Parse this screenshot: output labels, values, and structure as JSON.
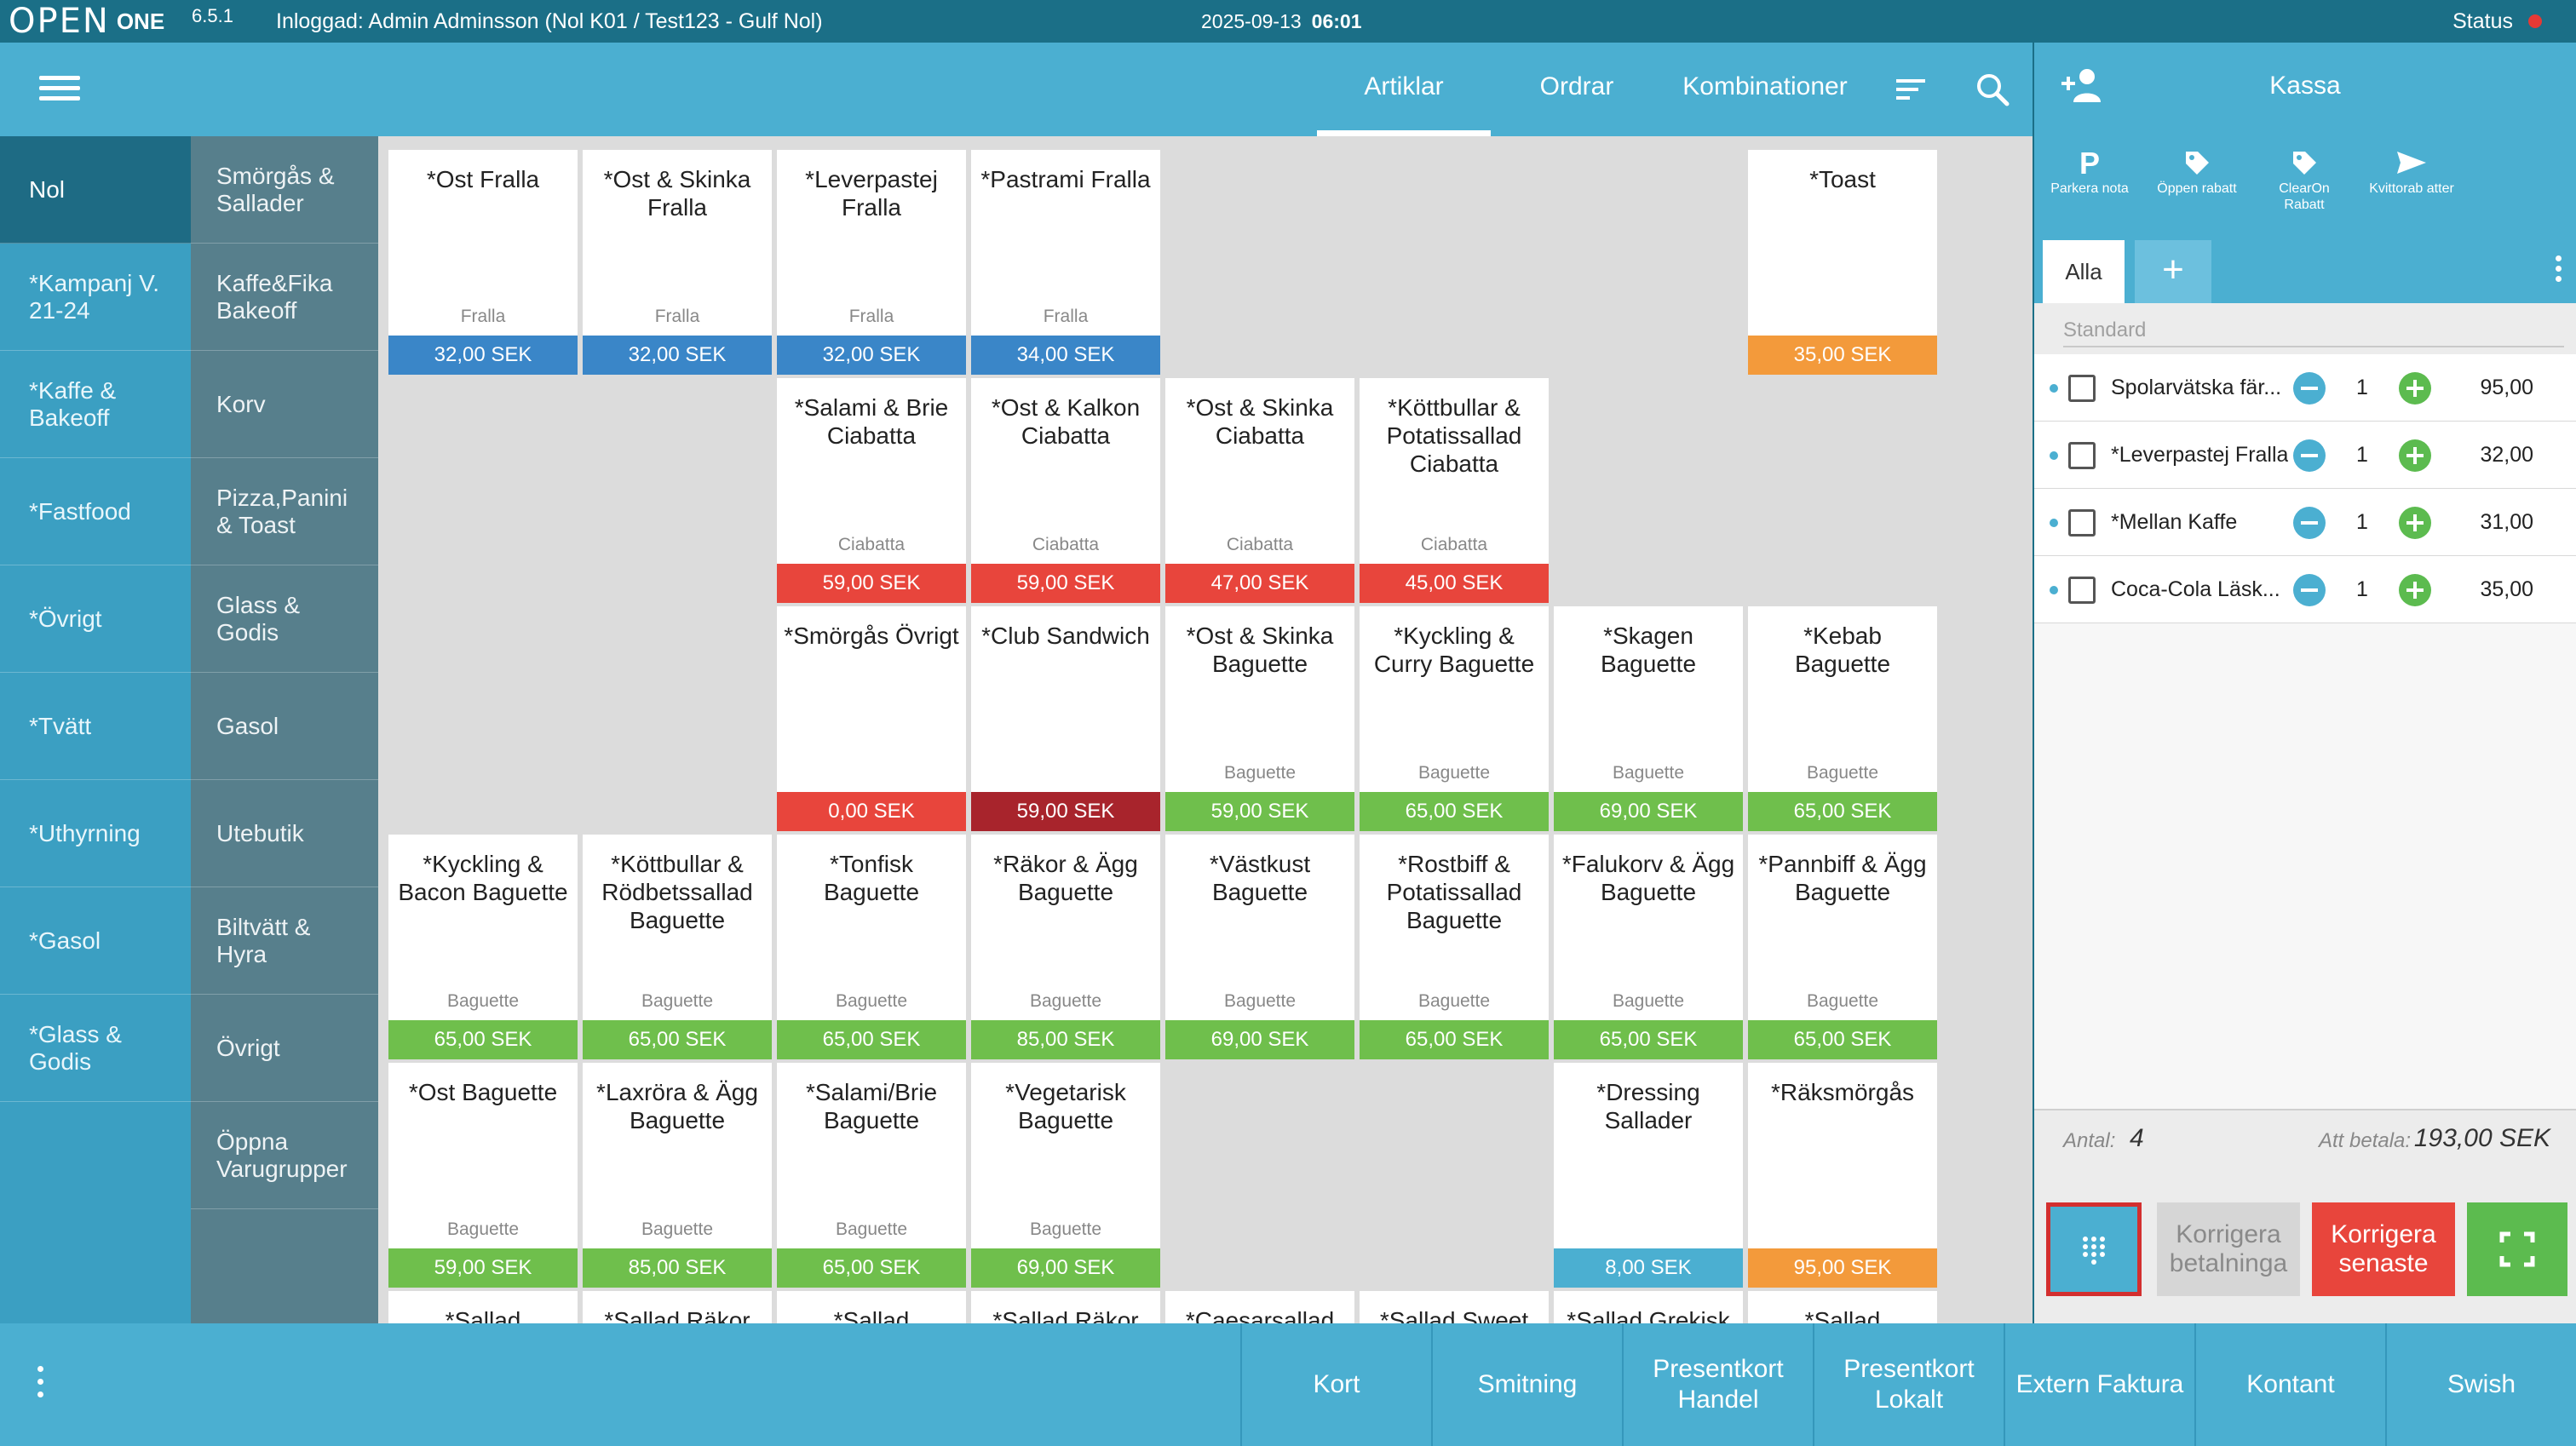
{
  "titlebar": {
    "logo_text": "OPEN",
    "logo_suffix": "ONE",
    "version": "6.5.1",
    "login_text": "Inloggad: Admin Adminsson (Nol K01 / Test123 - Gulf Nol)",
    "date": "2025-09-13",
    "time": "06:01",
    "status_label": "Status",
    "status_color": "#e53935"
  },
  "header": {
    "tabs": [
      {
        "label": "Artiklar",
        "active": true
      },
      {
        "label": "Ordrar",
        "active": false
      },
      {
        "label": "Kombinationer",
        "active": false
      }
    ],
    "icons": [
      "menu-icon",
      "sort-icon",
      "search-icon"
    ]
  },
  "categories_primary": [
    {
      "label": "Nol",
      "active": true
    },
    {
      "label": "*Kampanj V. 21-24"
    },
    {
      "label": "*Kaffe & Bakeoff"
    },
    {
      "label": "*Fastfood"
    },
    {
      "label": "*Övrigt"
    },
    {
      "label": "*Tvätt"
    },
    {
      "label": "*Uthyrning"
    },
    {
      "label": "*Gasol"
    },
    {
      "label": "*Glass & Godis"
    }
  ],
  "categories_secondary": [
    {
      "label": "Smörgås & Sallader"
    },
    {
      "label": "Kaffe&Fika Bakeoff"
    },
    {
      "label": "Korv"
    },
    {
      "label": "Pizza,Panini & Toast"
    },
    {
      "label": "Glass & Godis"
    },
    {
      "label": "Gasol"
    },
    {
      "label": "Utebutik"
    },
    {
      "label": "Biltvätt & Hyra"
    },
    {
      "label": "Övrigt"
    },
    {
      "label": "Öppna Varugrupper"
    }
  ],
  "colors": {
    "blue": "#3a86c8",
    "orange": "#f39a3b",
    "red": "#e8453c",
    "darkred": "#a8242c",
    "green": "#6fbf4c",
    "lightblue": "#4bafd1"
  },
  "products": [
    {
      "name": "*Ost Fralla",
      "sub": "Fralla",
      "price": "32,00 SEK",
      "color": "blue",
      "row": 0,
      "col": 0
    },
    {
      "name": "*Ost & Skinka Fralla",
      "sub": "Fralla",
      "price": "32,00 SEK",
      "color": "blue",
      "row": 0,
      "col": 1
    },
    {
      "name": "*Leverpastej Fralla",
      "sub": "Fralla",
      "price": "32,00 SEK",
      "color": "blue",
      "row": 0,
      "col": 2
    },
    {
      "name": "*Pastrami Fralla",
      "sub": "Fralla",
      "price": "34,00 SEK",
      "color": "blue",
      "row": 0,
      "col": 3
    },
    {
      "name": "*Toast",
      "sub": "",
      "price": "35,00 SEK",
      "color": "orange",
      "row": 0,
      "col": 7
    },
    {
      "name": "*Salami & Brie Ciabatta",
      "sub": "Ciabatta",
      "price": "59,00 SEK",
      "color": "red",
      "row": 1,
      "col": 2
    },
    {
      "name": "*Ost & Kalkon Ciabatta",
      "sub": "Ciabatta",
      "price": "59,00 SEK",
      "color": "red",
      "row": 1,
      "col": 3
    },
    {
      "name": "*Ost & Skinka Ciabatta",
      "sub": "Ciabatta",
      "price": "47,00 SEK",
      "color": "red",
      "row": 1,
      "col": 4
    },
    {
      "name": "*Köttbullar & Potatissallad Ciabatta",
      "sub": "Ciabatta",
      "price": "45,00 SEK",
      "color": "red",
      "row": 1,
      "col": 5
    },
    {
      "name": "*Smörgås Övrigt",
      "sub": "",
      "price": "0,00 SEK",
      "color": "red",
      "row": 2,
      "col": 2
    },
    {
      "name": "*Club Sandwich",
      "sub": "",
      "price": "59,00 SEK",
      "color": "darkred",
      "row": 2,
      "col": 3
    },
    {
      "name": "*Ost & Skinka Baguette",
      "sub": "Baguette",
      "price": "59,00 SEK",
      "color": "green",
      "row": 2,
      "col": 4
    },
    {
      "name": "*Kyckling & Curry Baguette",
      "sub": "Baguette",
      "price": "65,00 SEK",
      "color": "green",
      "row": 2,
      "col": 5
    },
    {
      "name": "*Skagen Baguette",
      "sub": "Baguette",
      "price": "69,00 SEK",
      "color": "green",
      "row": 2,
      "col": 6
    },
    {
      "name": "*Kebab Baguette",
      "sub": "Baguette",
      "price": "65,00 SEK",
      "color": "green",
      "row": 2,
      "col": 7
    },
    {
      "name": "*Kyckling & Bacon Baguette",
      "sub": "Baguette",
      "price": "65,00 SEK",
      "color": "green",
      "row": 3,
      "col": 0
    },
    {
      "name": "*Köttbullar & Rödbetssallad Baguette",
      "sub": "Baguette",
      "price": "65,00 SEK",
      "color": "green",
      "row": 3,
      "col": 1
    },
    {
      "name": "*Tonfisk Baguette",
      "sub": "Baguette",
      "price": "65,00 SEK",
      "color": "green",
      "row": 3,
      "col": 2
    },
    {
      "name": "*Räkor & Ägg Baguette",
      "sub": "Baguette",
      "price": "85,00 SEK",
      "color": "green",
      "row": 3,
      "col": 3
    },
    {
      "name": "*Västkust Baguette",
      "sub": "Baguette",
      "price": "69,00 SEK",
      "color": "green",
      "row": 3,
      "col": 4
    },
    {
      "name": "*Rostbiff & Potatissallad Baguette",
      "sub": "Baguette",
      "price": "65,00 SEK",
      "color": "green",
      "row": 3,
      "col": 5
    },
    {
      "name": "*Falukorv & Ägg Baguette",
      "sub": "Baguette",
      "price": "65,00 SEK",
      "color": "green",
      "row": 3,
      "col": 6
    },
    {
      "name": "*Pannbiff & Ägg Baguette",
      "sub": "Baguette",
      "price": "65,00 SEK",
      "color": "green",
      "row": 3,
      "col": 7
    },
    {
      "name": "*Ost Baguette",
      "sub": "Baguette",
      "price": "59,00 SEK",
      "color": "green",
      "row": 4,
      "col": 0
    },
    {
      "name": "*Laxröra & Ägg Baguette",
      "sub": "Baguette",
      "price": "85,00 SEK",
      "color": "green",
      "row": 4,
      "col": 1
    },
    {
      "name": "*Salami/Brie Baguette",
      "sub": "Baguette",
      "price": "65,00 SEK",
      "color": "green",
      "row": 4,
      "col": 2
    },
    {
      "name": "*Vegetarisk Baguette",
      "sub": "Baguette",
      "price": "69,00 SEK",
      "color": "green",
      "row": 4,
      "col": 3
    },
    {
      "name": "*Dressing Sallader",
      "sub": "",
      "price": "8,00 SEK",
      "color": "lightblue",
      "row": 4,
      "col": 6
    },
    {
      "name": "*Räksmörgås",
      "sub": "",
      "price": "95,00 SEK",
      "color": "orange",
      "row": 4,
      "col": 7
    },
    {
      "name": "*Sallad",
      "sub": "",
      "price": "",
      "color": "",
      "row": 5,
      "col": 0
    },
    {
      "name": "*Sallad Räkor",
      "sub": "",
      "price": "",
      "color": "",
      "row": 5,
      "col": 1
    },
    {
      "name": "*Sallad",
      "sub": "",
      "price": "",
      "color": "",
      "row": 5,
      "col": 2
    },
    {
      "name": "*Sallad Räkor",
      "sub": "",
      "price": "",
      "color": "",
      "row": 5,
      "col": 3
    },
    {
      "name": "*Caesarsallad",
      "sub": "",
      "price": "",
      "color": "",
      "row": 5,
      "col": 4
    },
    {
      "name": "*Sallad Sweet",
      "sub": "",
      "price": "",
      "color": "",
      "row": 5,
      "col": 5
    },
    {
      "name": "*Sallad Grekisk",
      "sub": "",
      "price": "",
      "color": "",
      "row": 5,
      "col": 6
    },
    {
      "name": "*Sallad",
      "sub": "",
      "price": "",
      "color": "",
      "row": 5,
      "col": 7
    }
  ],
  "kassa": {
    "title": "Kassa",
    "tools": [
      {
        "label": "Parkera nota",
        "icon": "parking-icon"
      },
      {
        "label": "Öppen rabatt",
        "icon": "tag-icon"
      },
      {
        "label": "ClearOn Rabatt",
        "icon": "tag-icon"
      },
      {
        "label": "Kvittorab atter",
        "icon": "send-icon"
      }
    ],
    "tab_all": "Alla",
    "tab_add": "+",
    "standard_placeholder": "Standard",
    "items": [
      {
        "name": "Spolarvätska fär...",
        "qty": "1",
        "amount": "95,00"
      },
      {
        "name": "*Leverpastej Fralla",
        "qty": "1",
        "amount": "32,00"
      },
      {
        "name": "*Mellan Kaffe",
        "qty": "1",
        "amount": "31,00"
      },
      {
        "name": "Coca-Cola Läsk...",
        "qty": "1",
        "amount": "35,00"
      }
    ],
    "antal_label": "Antal:",
    "antal_value": "4",
    "pay_label": "Att betala:",
    "pay_value": "193,00 SEK",
    "buttons": {
      "korrigera_betalning": "Korrigera betalninga",
      "korrigera_senaste": "Korrigera senaste"
    }
  },
  "payments": [
    "Kort",
    "Smitning",
    "Presentkort Handel",
    "Presentkort Lokalt",
    "Extern Faktura",
    "Kontant",
    "Swish"
  ]
}
